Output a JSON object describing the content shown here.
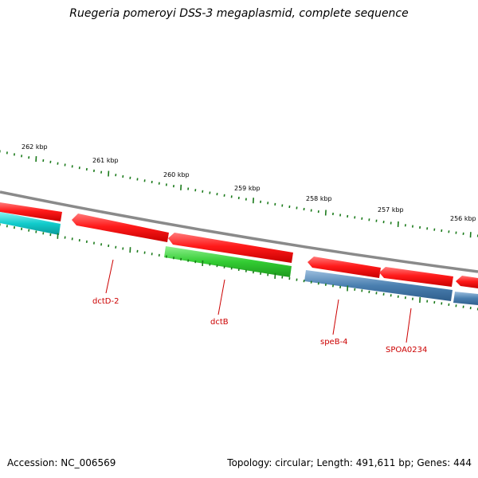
{
  "title": "Ruegeria pomeroyi DSS-3 megaplasmid, complete sequence",
  "footer": {
    "accession": "Accession: NC_006569",
    "summary": "Topology: circular; Length: 491,611 bp; Genes: 444"
  },
  "colors": {
    "backbone": "#8a8a8a",
    "tick": "#1a7a1a",
    "gene_red": "#ee1111",
    "gene_green": "#33cc33",
    "gene_cyan": "#11cccc",
    "gene_blue": "#4a7fb0",
    "label": "#cc0000"
  },
  "scale_labels": [
    "262 kbp",
    "261 kbp",
    "260 kbp",
    "259 kbp",
    "258 kbp",
    "257 kbp",
    "256 kbp"
  ],
  "gene_labels": [
    "dctD-2",
    "dctB",
    "speB-4",
    "SPOA0234"
  ]
}
